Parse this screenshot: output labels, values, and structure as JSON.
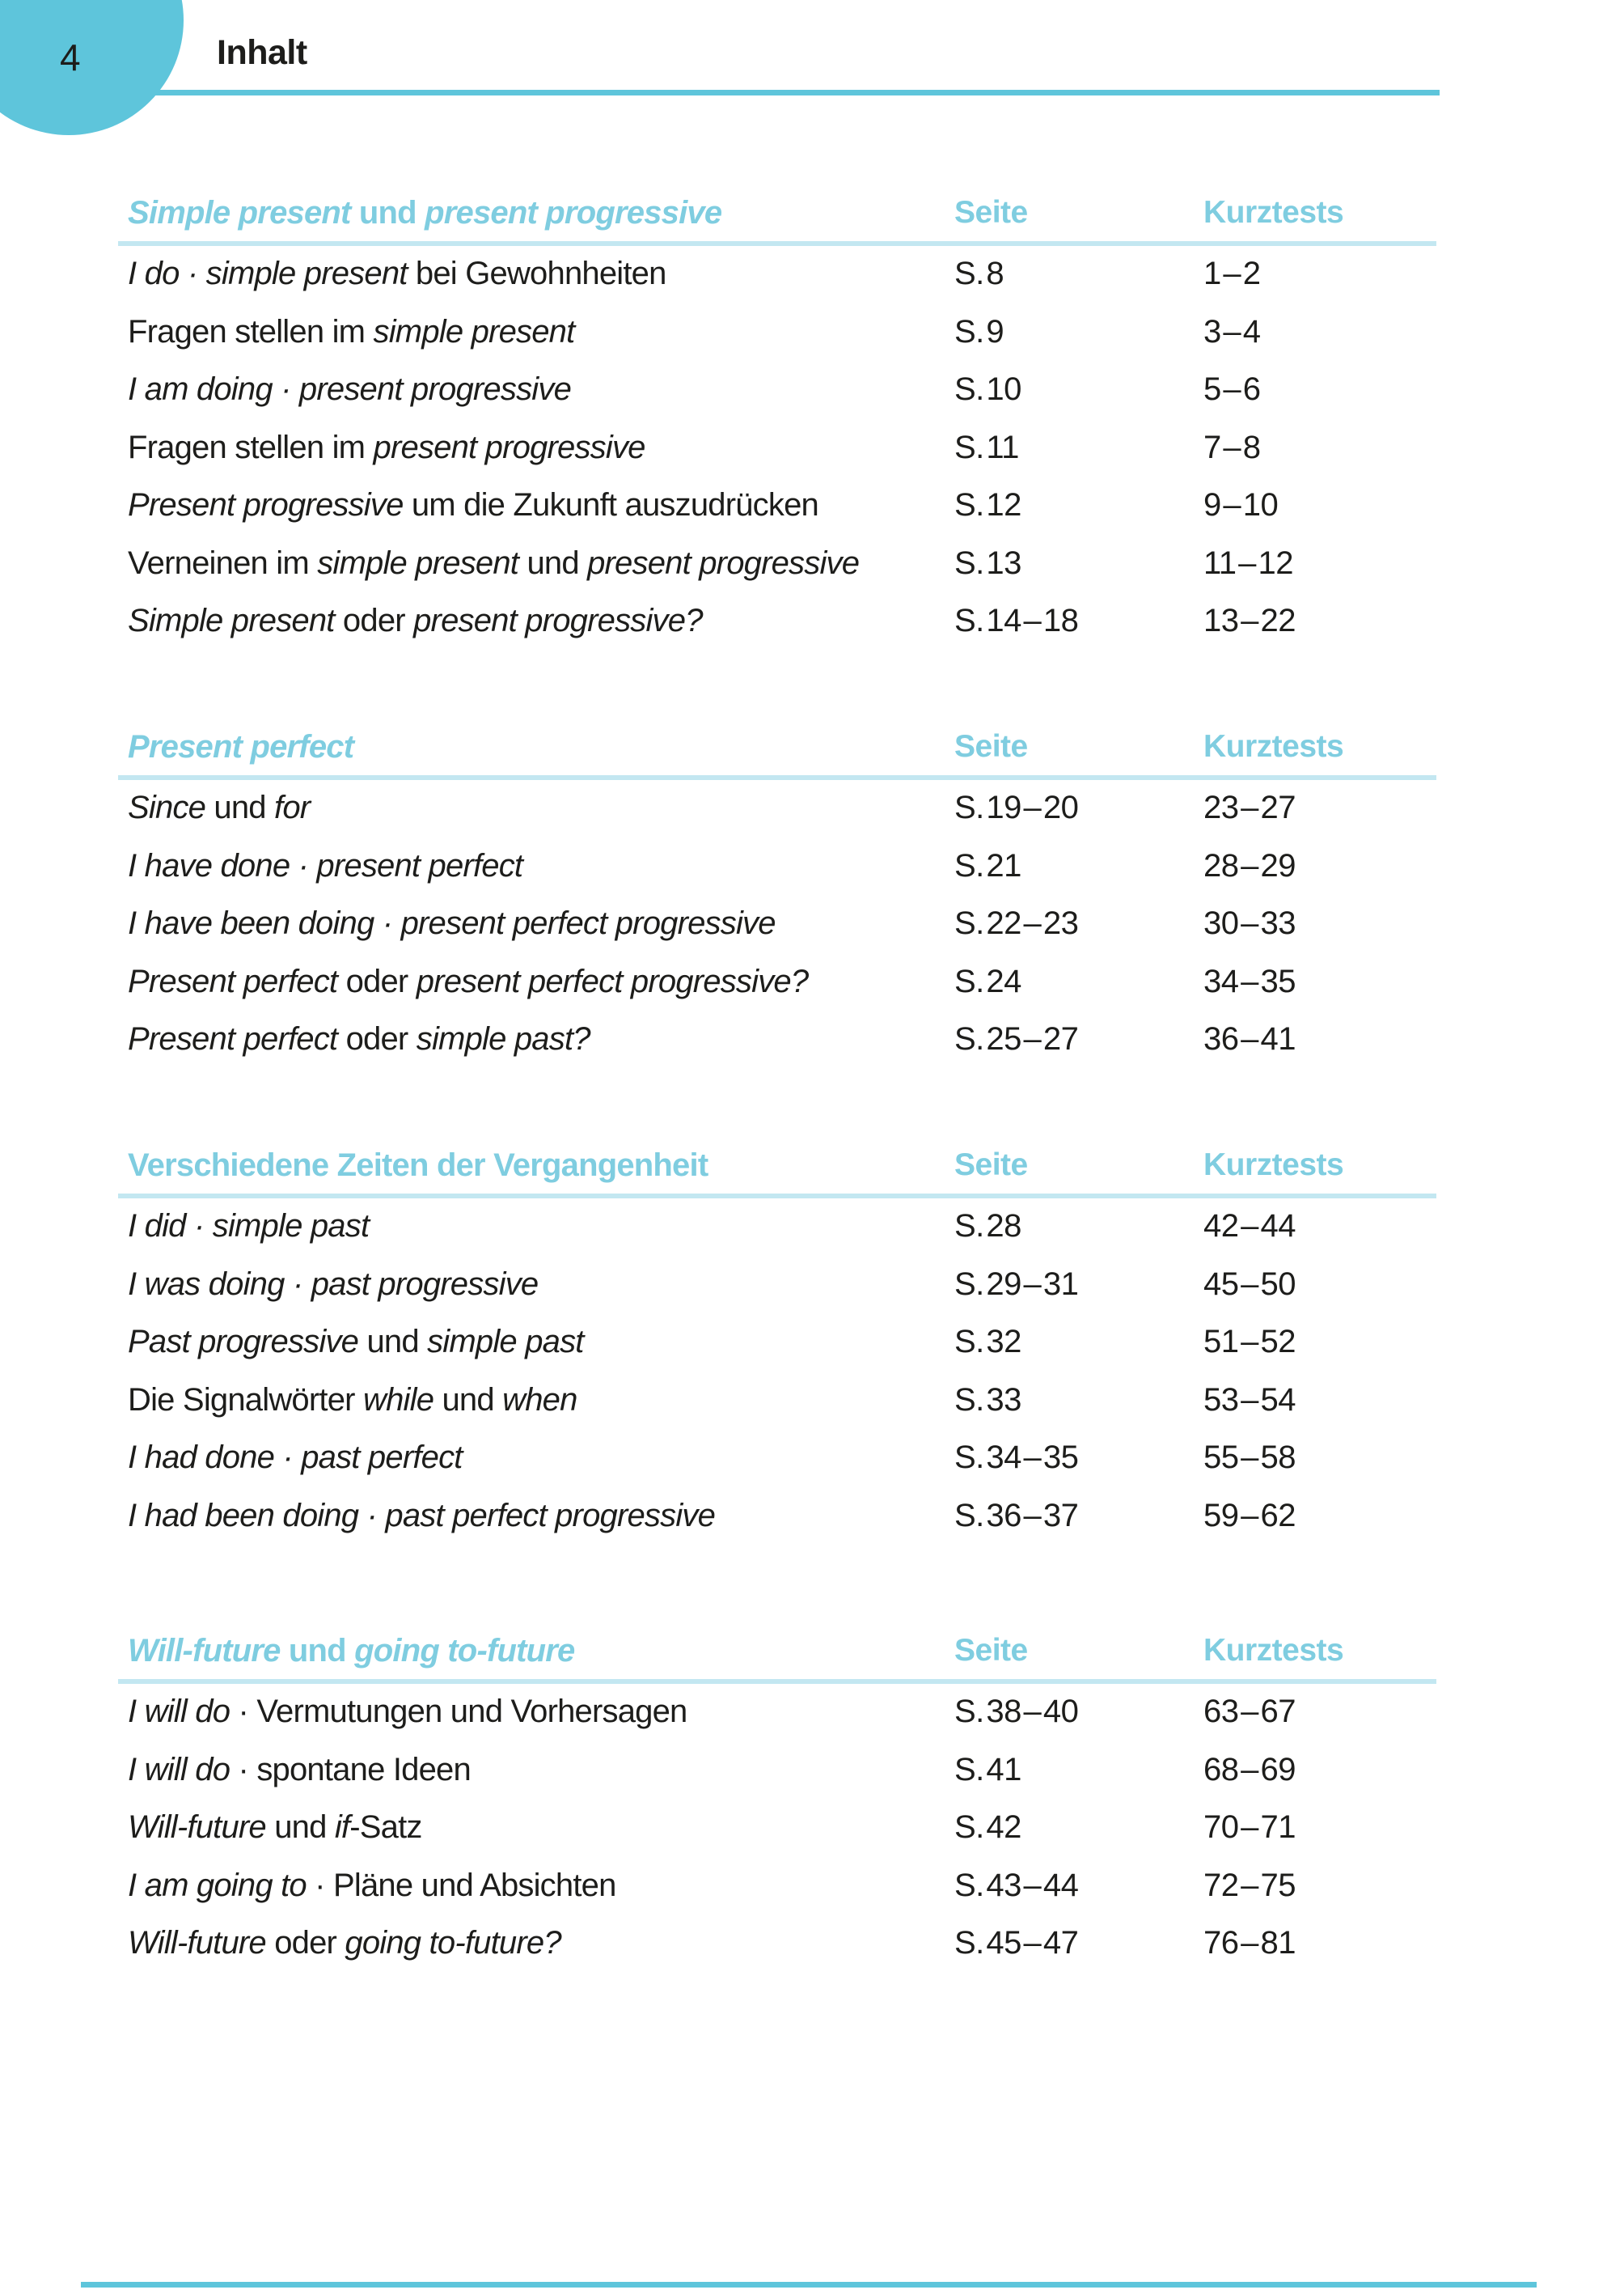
{
  "page": {
    "number": "4",
    "title": "Inhalt"
  },
  "columns": {
    "seite": "Seite",
    "kurztests": "Kurztests"
  },
  "colors": {
    "accent": "#5ec5db",
    "heading_text": "#7fcde0",
    "divider": "#c3e7f1",
    "text": "#1d1d1b"
  },
  "sections": [
    {
      "title_segments": [
        {
          "text": "Simple present",
          "italic": true
        },
        {
          "text": " und ",
          "italic": false
        },
        {
          "text": "present progressive",
          "italic": true
        }
      ],
      "rows": [
        {
          "segments": [
            {
              "text": "I do · simple present",
              "italic": true
            },
            {
              "text": " bei Gewohnheiten",
              "italic": false
            }
          ],
          "seite": "S. 8",
          "kurztests": "1 – 2"
        },
        {
          "segments": [
            {
              "text": "Fragen stellen im ",
              "italic": false
            },
            {
              "text": "simple present",
              "italic": true
            }
          ],
          "seite": "S. 9",
          "kurztests": "3 – 4"
        },
        {
          "segments": [
            {
              "text": "I am doing · present progressive",
              "italic": true
            }
          ],
          "seite": "S. 10",
          "kurztests": "5 – 6"
        },
        {
          "segments": [
            {
              "text": "Fragen stellen im ",
              "italic": false
            },
            {
              "text": "present progressive",
              "italic": true
            }
          ],
          "seite": "S. 11",
          "kurztests": "7 – 8"
        },
        {
          "segments": [
            {
              "text": "Present progressive",
              "italic": true
            },
            {
              "text": " um die Zukunft auszudrücken",
              "italic": false
            }
          ],
          "seite": "S. 12",
          "kurztests": "9 – 10"
        },
        {
          "segments": [
            {
              "text": "Verneinen im ",
              "italic": false
            },
            {
              "text": "simple present",
              "italic": true
            },
            {
              "text": " und ",
              "italic": false
            },
            {
              "text": "present progressive",
              "italic": true
            }
          ],
          "seite": "S. 13",
          "kurztests": "11 – 12"
        },
        {
          "segments": [
            {
              "text": "Simple present",
              "italic": true
            },
            {
              "text": " oder ",
              "italic": false
            },
            {
              "text": "present progressive?",
              "italic": true
            }
          ],
          "seite": "S. 14 – 18",
          "kurztests": "13 – 22"
        }
      ]
    },
    {
      "title_segments": [
        {
          "text": "Present perfect",
          "italic": true
        }
      ],
      "rows": [
        {
          "segments": [
            {
              "text": "Since",
              "italic": true
            },
            {
              "text": " und ",
              "italic": false
            },
            {
              "text": "for",
              "italic": true
            }
          ],
          "seite": "S. 19 – 20",
          "kurztests": "23 – 27"
        },
        {
          "segments": [
            {
              "text": "I have done · present perfect",
              "italic": true
            }
          ],
          "seite": "S. 21",
          "kurztests": "28 – 29"
        },
        {
          "segments": [
            {
              "text": "I have been doing · present perfect progressive",
              "italic": true
            }
          ],
          "seite": "S. 22 – 23",
          "kurztests": "30 – 33"
        },
        {
          "segments": [
            {
              "text": "Present perfect",
              "italic": true
            },
            {
              "text": " oder ",
              "italic": false
            },
            {
              "text": "present perfect progressive?",
              "italic": true
            }
          ],
          "seite": "S. 24",
          "kurztests": "34 – 35"
        },
        {
          "segments": [
            {
              "text": "Present perfect",
              "italic": true
            },
            {
              "text": " oder ",
              "italic": false
            },
            {
              "text": "simple past?",
              "italic": true
            }
          ],
          "seite": "S. 25 – 27",
          "kurztests": "36 – 41"
        }
      ]
    },
    {
      "title_segments": [
        {
          "text": "Verschiedene Zeiten der Vergangenheit",
          "italic": false
        }
      ],
      "rows": [
        {
          "segments": [
            {
              "text": "I did · simple past",
              "italic": true
            }
          ],
          "seite": "S. 28",
          "kurztests": "42 – 44"
        },
        {
          "segments": [
            {
              "text": "I was doing · past progressive",
              "italic": true
            }
          ],
          "seite": "S. 29 – 31",
          "kurztests": "45 – 50"
        },
        {
          "segments": [
            {
              "text": "Past progressive",
              "italic": true
            },
            {
              "text": " und ",
              "italic": false
            },
            {
              "text": "simple past",
              "italic": true
            }
          ],
          "seite": "S. 32",
          "kurztests": "51 – 52"
        },
        {
          "segments": [
            {
              "text": "Die Signalwörter ",
              "italic": false
            },
            {
              "text": "while",
              "italic": true
            },
            {
              "text": " und ",
              "italic": false
            },
            {
              "text": "when",
              "italic": true
            }
          ],
          "seite": "S. 33",
          "kurztests": "53 – 54"
        },
        {
          "segments": [
            {
              "text": "I had done · past perfect",
              "italic": true
            }
          ],
          "seite": "S. 34 – 35",
          "kurztests": "55 – 58"
        },
        {
          "segments": [
            {
              "text": "I had been doing · past perfect progressive",
              "italic": true
            }
          ],
          "seite": "S. 36 – 37",
          "kurztests": "59 – 62"
        }
      ]
    },
    {
      "title_segments": [
        {
          "text": "Will-future",
          "italic": true
        },
        {
          "text": " und ",
          "italic": false
        },
        {
          "text": "going to-future",
          "italic": true
        }
      ],
      "rows": [
        {
          "segments": [
            {
              "text": "I will do",
              "italic": true
            },
            {
              "text": " · Vermutungen und Vorhersagen",
              "italic": false
            }
          ],
          "seite": "S. 38 – 40",
          "kurztests": "63 – 67"
        },
        {
          "segments": [
            {
              "text": "I will do",
              "italic": true
            },
            {
              "text": " · spontane Ideen",
              "italic": false
            }
          ],
          "seite": "S. 41",
          "kurztests": "68 – 69"
        },
        {
          "segments": [
            {
              "text": "Will-future",
              "italic": true
            },
            {
              "text": " und ",
              "italic": false
            },
            {
              "text": "if",
              "italic": true
            },
            {
              "text": "-Satz",
              "italic": false
            }
          ],
          "seite": "S. 42",
          "kurztests": "70 – 71"
        },
        {
          "segments": [
            {
              "text": "I am going to",
              "italic": true
            },
            {
              "text": " · Pläne und Absichten",
              "italic": false
            }
          ],
          "seite": "S. 43 – 44",
          "kurztests": "72 – 75"
        },
        {
          "segments": [
            {
              "text": "Will-future",
              "italic": true
            },
            {
              "text": " oder ",
              "italic": false
            },
            {
              "text": "going to-future?",
              "italic": true
            }
          ],
          "seite": "S. 45 – 47",
          "kurztests": "76 – 81"
        }
      ]
    }
  ]
}
